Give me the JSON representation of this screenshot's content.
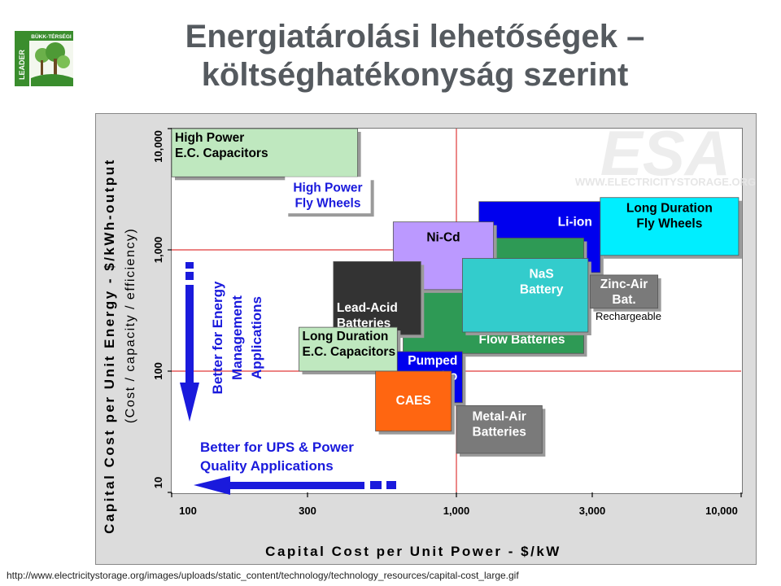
{
  "slide": {
    "title_line1": "Energiatárolási lehetőségek –",
    "title_line2": "költséghatékonyság szerint",
    "logo_text": "BÜKK-TÉRSÉGI",
    "logo_side_text": "LEADER",
    "source_url": "http://www.electricitystorage.org/images/uploads/static_content/technology/technology_resources/capital-cost_large.gif"
  },
  "chart_data": {
    "type": "scatter",
    "subtype": "region-map",
    "xlabel": "Capital Cost per Unit Power  -  $/kW",
    "ylabel": "Capital Cost per Unit Energy  -  $/kWh-output",
    "ylabel_sub": "(Cost / capacity / efficiency)",
    "x_scale": "log",
    "y_scale": "log",
    "xlim": [
      100,
      10000
    ],
    "ylim": [
      10,
      10000
    ],
    "x_ticks": [
      {
        "value": 100,
        "label": "100"
      },
      {
        "value": 300,
        "label": "300"
      },
      {
        "value": 1000,
        "label": "1,000"
      },
      {
        "value": 3000,
        "label": "3,000"
      },
      {
        "value": 10000,
        "label": "10,000"
      }
    ],
    "y_ticks": [
      {
        "value": 10,
        "label": "10"
      },
      {
        "value": 100,
        "label": "100"
      },
      {
        "value": 1000,
        "label": "1,000"
      },
      {
        "value": 10000,
        "label": "10,000"
      }
    ],
    "reference_lines": {
      "x": [
        1000
      ],
      "y": [
        100,
        1000
      ]
    },
    "watermark": "WWW.ELECTRICITYSTORAGE.ORG",
    "watermark_logo": "ESA",
    "regions": [
      {
        "id": "high-power-ec",
        "label": [
          "High Power",
          "E.C. Capacitors"
        ],
        "x": [
          100,
          450
        ],
        "y": [
          4000,
          10000
        ],
        "color": "#bfe8bf",
        "text_color": "#000000",
        "align": "left"
      },
      {
        "id": "high-power-fly",
        "label": [
          "High Power",
          "Fly Wheels"
        ],
        "x": [
          250,
          500
        ],
        "y": [
          2000,
          4000
        ],
        "color": "#ffffff",
        "text_color": "#1a1adc",
        "align": "center"
      },
      {
        "id": "li-ion",
        "label": [
          "Li-ion"
        ],
        "x": [
          1200,
          3200
        ],
        "y": [
          650,
          2500
        ],
        "color": "#0000ee",
        "text_color": "#ffffff",
        "align": "right"
      },
      {
        "id": "long-dur-fly",
        "label": [
          "Long Duration",
          "Fly Wheels"
        ],
        "x": [
          3200,
          9800
        ],
        "y": [
          900,
          2700
        ],
        "color": "#00eeff",
        "text_color": "#000000",
        "align": "center"
      },
      {
        "id": "flow",
        "label": [
          "Flow Batteries"
        ],
        "x": [
          650,
          2800
        ],
        "y": [
          140,
          1250
        ],
        "color": "#2e9a55",
        "text_color": "#ffffff",
        "align": "center"
      },
      {
        "id": "nicd",
        "label": [
          "Ni-Cd"
        ],
        "x": [
          600,
          1350
        ],
        "y": [
          470,
          1700
        ],
        "color": "#bb99ff",
        "text_color": "#000000",
        "align": "center"
      },
      {
        "id": "nas",
        "label": [
          "NaS",
          "Battery"
        ],
        "x": [
          1050,
          2900
        ],
        "y": [
          210,
          850
        ],
        "color": "#33cccc",
        "text_color": "#ffffff",
        "align": "center"
      },
      {
        "id": "zinc-air",
        "label": [
          "Zinc-Air",
          "Bat."
        ],
        "x": [
          2950,
          5100
        ],
        "y": [
          330,
          620
        ],
        "color": "#7a7a7a",
        "text_color": "#ffffff",
        "align": "center"
      },
      {
        "id": "lead-acid",
        "label": [
          "Lead-Acid",
          "Batteries"
        ],
        "x": [
          370,
          750
        ],
        "y": [
          200,
          800
        ],
        "color": "#333333",
        "text_color": "#ffffff",
        "align": "left"
      },
      {
        "id": "long-dur-ec",
        "label": [
          "Long Duration",
          "E.C. Capacitors"
        ],
        "x": [
          280,
          620
        ],
        "y": [
          100,
          230
        ],
        "color": "#bfe8bf",
        "text_color": "#000000",
        "align": "left"
      },
      {
        "id": "pumped-hydro",
        "label": [
          "Pumped",
          "Hydro"
        ],
        "x": [
          620,
          1050
        ],
        "y": [
          55,
          145
        ],
        "color": "#0000ee",
        "text_color": "#ffffff",
        "align": "right"
      },
      {
        "id": "caes",
        "label": [
          "CAES"
        ],
        "x": [
          520,
          960
        ],
        "y": [
          32,
          100
        ],
        "color": "#ff6611",
        "text_color": "#ffffff",
        "align": "center"
      },
      {
        "id": "metal-air",
        "label": [
          "Metal-Air",
          "Batteries"
        ],
        "x": [
          1000,
          2000
        ],
        "y": [
          21,
          52
        ],
        "color": "#7a7a7a",
        "text_color": "#ffffff",
        "align": "center"
      }
    ],
    "annotations": [
      {
        "id": "rechargeable",
        "text": "Rechargeable",
        "x": 3000,
        "y": 290,
        "color": "#000000"
      },
      {
        "id": "energy-mgmt",
        "text": [
          "Better for Energy",
          "Management",
          "Applications"
        ],
        "color": "#1a1adc"
      },
      {
        "id": "ups",
        "text": [
          "Better for UPS & Power",
          "Quality Applications"
        ],
        "color": "#1a1adc"
      }
    ]
  }
}
